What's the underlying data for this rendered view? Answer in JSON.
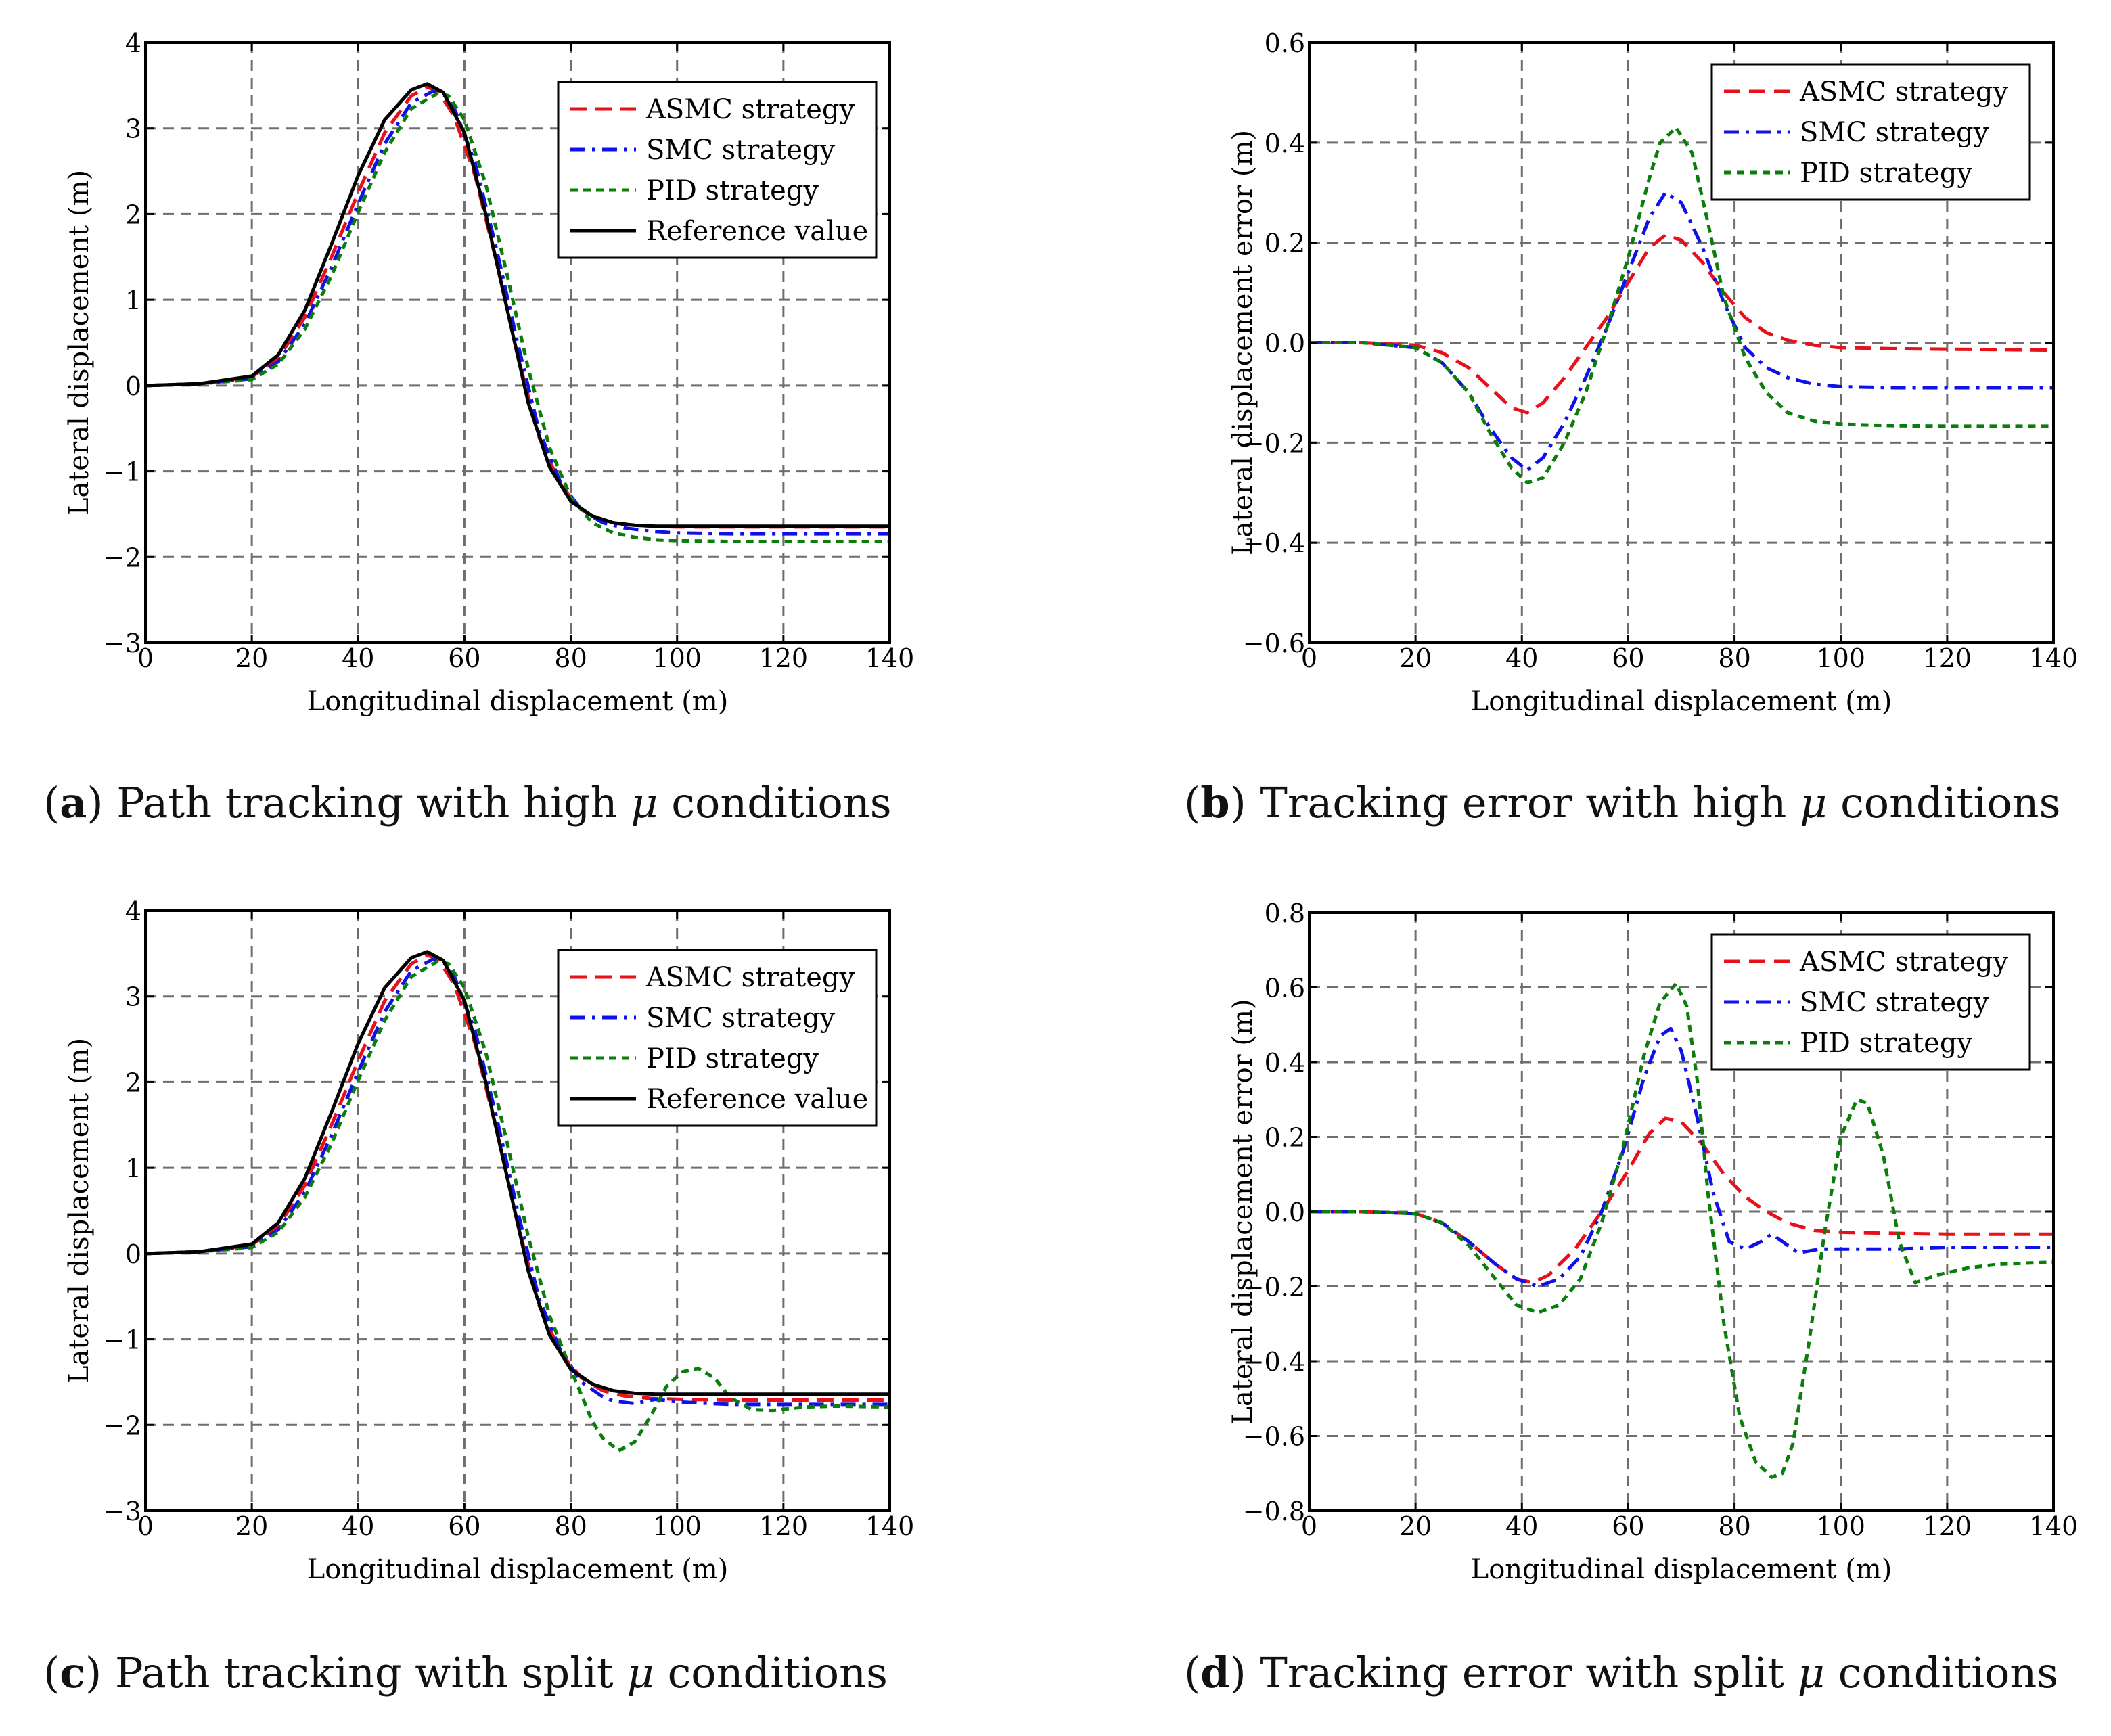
{
  "colors": {
    "asmc": "#e8101a",
    "smc": "#1010e8",
    "pid": "#0b7d0b",
    "reference": "#000000",
    "grid": "#6e6e6e"
  },
  "captions": [
    {
      "letter": "a",
      "text_before": "Path tracking with high",
      "mu": "μ",
      "text_after": "conditions"
    },
    {
      "letter": "b",
      "text_before": "Tracking error with high",
      "mu": "μ",
      "text_after": "conditions"
    },
    {
      "letter": "c",
      "text_before": "Path tracking with split",
      "mu": "μ",
      "text_after": "conditions"
    },
    {
      "letter": "d",
      "text_before": "Tracking error with split",
      "mu": "μ",
      "text_after": "conditions"
    }
  ],
  "chart_data": [
    {
      "id": "a",
      "type": "line",
      "title": "",
      "xlabel": "Longitudinal displacement (m)",
      "ylabel": "Lateral displacement (m)",
      "xlim": [
        0,
        140
      ],
      "ylim": [
        -3,
        4
      ],
      "xticks": [
        0,
        20,
        40,
        60,
        80,
        100,
        120,
        140
      ],
      "yticks": [
        -3,
        -2,
        -1,
        0,
        1,
        2,
        3,
        4
      ],
      "ytick_labels": [
        "−3",
        "−2",
        "−1",
        "0",
        "1",
        "2",
        "3",
        "4"
      ],
      "grid": true,
      "legend_position": "top-right",
      "series": [
        {
          "name": "ASMC strategy",
          "style": "dashed",
          "color_key": "asmc",
          "x": [
            0,
            10,
            20,
            25,
            30,
            35,
            40,
            45,
            50,
            53,
            55,
            58,
            62,
            66,
            70,
            74,
            78,
            82,
            86,
            90,
            95,
            100,
            110,
            120,
            130,
            140
          ],
          "y": [
            0,
            0.02,
            0.1,
            0.32,
            0.8,
            1.5,
            2.25,
            2.95,
            3.38,
            3.48,
            3.44,
            3.15,
            2.45,
            1.45,
            0.35,
            -0.6,
            -1.15,
            -1.45,
            -1.57,
            -1.62,
            -1.64,
            -1.65,
            -1.65,
            -1.65,
            -1.65,
            -1.65
          ]
        },
        {
          "name": "SMC strategy",
          "style": "dashdot",
          "color_key": "smc",
          "x": [
            0,
            10,
            20,
            25,
            30,
            35,
            40,
            45,
            50,
            54,
            56,
            58,
            62,
            66,
            70,
            74,
            78,
            82,
            86,
            90,
            95,
            100,
            110,
            120,
            130,
            140
          ],
          "y": [
            0,
            0.02,
            0.08,
            0.28,
            0.72,
            1.38,
            2.12,
            2.82,
            3.3,
            3.43,
            3.4,
            3.25,
            2.6,
            1.6,
            0.5,
            -0.52,
            -1.12,
            -1.45,
            -1.6,
            -1.66,
            -1.7,
            -1.72,
            -1.73,
            -1.73,
            -1.73,
            -1.73
          ]
        },
        {
          "name": "PID strategy",
          "style": "dotted",
          "color_key": "pid",
          "x": [
            0,
            10,
            20,
            25,
            30,
            35,
            40,
            45,
            50,
            55,
            57,
            60,
            64,
            68,
            72,
            76,
            80,
            84,
            88,
            92,
            96,
            100,
            110,
            120,
            130,
            140
          ],
          "y": [
            0,
            0.02,
            0.07,
            0.25,
            0.66,
            1.28,
            2.02,
            2.72,
            3.23,
            3.41,
            3.38,
            3.1,
            2.35,
            1.3,
            0.2,
            -0.72,
            -1.3,
            -1.6,
            -1.72,
            -1.77,
            -1.8,
            -1.81,
            -1.82,
            -1.82,
            -1.82,
            -1.82
          ]
        },
        {
          "name": "Reference value",
          "style": "solid",
          "color_key": "reference",
          "x": [
            0,
            10,
            20,
            25,
            30,
            35,
            40,
            45,
            50,
            53,
            56,
            60,
            64,
            68,
            72,
            76,
            80,
            84,
            88,
            92,
            96,
            100,
            110,
            120,
            130,
            140
          ],
          "y": [
            0,
            0.02,
            0.11,
            0.36,
            0.88,
            1.65,
            2.45,
            3.1,
            3.45,
            3.52,
            3.42,
            2.95,
            2.0,
            0.9,
            -0.2,
            -0.95,
            -1.35,
            -1.52,
            -1.6,
            -1.63,
            -1.64,
            -1.64,
            -1.64,
            -1.64,
            -1.64,
            -1.64
          ]
        }
      ]
    },
    {
      "id": "b",
      "type": "line",
      "title": "",
      "xlabel": "Longitudinal displacement (m)",
      "ylabel": "Lateral displacement error (m)",
      "xlim": [
        0,
        140
      ],
      "ylim": [
        -0.6,
        0.6
      ],
      "xticks": [
        0,
        20,
        40,
        60,
        80,
        100,
        120,
        140
      ],
      "yticks": [
        -0.6,
        -0.4,
        -0.2,
        0,
        0.2,
        0.4,
        0.6
      ],
      "ytick_labels": [
        "−0.6",
        "−0.4",
        "−0.2",
        "0.0",
        "0.2",
        "0.4",
        "0.6"
      ],
      "grid": true,
      "legend_position": "top-right",
      "series": [
        {
          "name": "ASMC strategy",
          "style": "dashed",
          "color_key": "asmc",
          "x": [
            0,
            10,
            20,
            25,
            30,
            35,
            38,
            41,
            44,
            48,
            52,
            56,
            60,
            64,
            67,
            70,
            74,
            78,
            82,
            86,
            90,
            95,
            100,
            110,
            120,
            130,
            140
          ],
          "y": [
            0,
            0,
            -0.005,
            -0.02,
            -0.05,
            -0.1,
            -0.13,
            -0.14,
            -0.12,
            -0.07,
            -0.01,
            0.05,
            0.12,
            0.19,
            0.215,
            0.205,
            0.16,
            0.1,
            0.05,
            0.02,
            0.005,
            -0.005,
            -0.01,
            -0.012,
            -0.013,
            -0.014,
            -0.015
          ]
        },
        {
          "name": "SMC strategy",
          "style": "dashdot",
          "color_key": "smc",
          "x": [
            0,
            10,
            20,
            25,
            30,
            34,
            38,
            41,
            44,
            48,
            52,
            56,
            60,
            64,
            67,
            70,
            74,
            78,
            82,
            86,
            90,
            95,
            100,
            110,
            120,
            130,
            140
          ],
          "y": [
            0,
            0,
            -0.01,
            -0.04,
            -0.1,
            -0.17,
            -0.23,
            -0.255,
            -0.23,
            -0.16,
            -0.07,
            0.03,
            0.14,
            0.25,
            0.3,
            0.28,
            0.19,
            0.08,
            -0.01,
            -0.05,
            -0.07,
            -0.083,
            -0.088,
            -0.09,
            -0.09,
            -0.09,
            -0.09
          ]
        },
        {
          "name": "PID strategy",
          "style": "dotted",
          "color_key": "pid",
          "x": [
            0,
            10,
            20,
            25,
            30,
            34,
            38,
            41,
            44,
            48,
            52,
            56,
            60,
            64,
            66,
            69,
            72,
            75,
            78,
            82,
            86,
            90,
            95,
            100,
            110,
            120,
            130,
            140
          ],
          "y": [
            0,
            0,
            -0.01,
            -0.04,
            -0.1,
            -0.18,
            -0.25,
            -0.28,
            -0.27,
            -0.2,
            -0.1,
            0.03,
            0.17,
            0.33,
            0.4,
            0.43,
            0.38,
            0.24,
            0.09,
            -0.03,
            -0.1,
            -0.14,
            -0.157,
            -0.163,
            -0.166,
            -0.167,
            -0.167,
            -0.167
          ]
        }
      ]
    },
    {
      "id": "c",
      "type": "line",
      "title": "",
      "xlabel": "Longitudinal displacement (m)",
      "ylabel": "Lateral displacement (m)",
      "xlim": [
        0,
        140
      ],
      "ylim": [
        -3,
        4
      ],
      "xticks": [
        0,
        20,
        40,
        60,
        80,
        100,
        120,
        140
      ],
      "yticks": [
        -3,
        -2,
        -1,
        0,
        1,
        2,
        3,
        4
      ],
      "ytick_labels": [
        "−3",
        "−2",
        "−1",
        "0",
        "1",
        "2",
        "3",
        "4"
      ],
      "grid": true,
      "legend_position": "top-right",
      "series": [
        {
          "name": "ASMC strategy",
          "style": "dashed",
          "color_key": "asmc",
          "x": [
            0,
            10,
            20,
            25,
            30,
            35,
            40,
            45,
            50,
            53,
            55,
            58,
            62,
            66,
            70,
            74,
            78,
            82,
            86,
            90,
            95,
            100,
            110,
            120,
            130,
            140
          ],
          "y": [
            0,
            0.02,
            0.1,
            0.32,
            0.8,
            1.5,
            2.25,
            2.95,
            3.38,
            3.48,
            3.44,
            3.15,
            2.45,
            1.45,
            0.35,
            -0.6,
            -1.15,
            -1.45,
            -1.6,
            -1.66,
            -1.69,
            -1.7,
            -1.71,
            -1.71,
            -1.71,
            -1.71
          ]
        },
        {
          "name": "SMC strategy",
          "style": "dashdot",
          "color_key": "smc",
          "x": [
            0,
            10,
            20,
            25,
            30,
            35,
            40,
            45,
            50,
            54,
            56,
            58,
            62,
            66,
            70,
            74,
            78,
            82,
            86,
            88,
            92,
            96,
            100,
            110,
            120,
            130,
            140
          ],
          "y": [
            0,
            0.02,
            0.08,
            0.28,
            0.72,
            1.38,
            2.12,
            2.82,
            3.3,
            3.43,
            3.4,
            3.25,
            2.6,
            1.6,
            0.5,
            -0.52,
            -1.12,
            -1.5,
            -1.67,
            -1.72,
            -1.75,
            -1.7,
            -1.73,
            -1.76,
            -1.76,
            -1.76,
            -1.76
          ]
        },
        {
          "name": "PID strategy",
          "style": "dotted",
          "color_key": "pid",
          "x": [
            0,
            10,
            20,
            25,
            30,
            35,
            40,
            45,
            50,
            55,
            57,
            60,
            64,
            68,
            72,
            76,
            80,
            84,
            86,
            89,
            92,
            95,
            98,
            101,
            104,
            107,
            110,
            114,
            118,
            124,
            130,
            140
          ],
          "y": [
            0,
            0.02,
            0.07,
            0.25,
            0.66,
            1.28,
            2.02,
            2.72,
            3.23,
            3.41,
            3.38,
            3.1,
            2.35,
            1.3,
            0.2,
            -0.72,
            -1.35,
            -1.95,
            -2.15,
            -2.3,
            -2.2,
            -1.9,
            -1.55,
            -1.38,
            -1.34,
            -1.45,
            -1.68,
            -1.82,
            -1.83,
            -1.79,
            -1.78,
            -1.79
          ]
        },
        {
          "name": "Reference value",
          "style": "solid",
          "color_key": "reference",
          "x": [
            0,
            10,
            20,
            25,
            30,
            35,
            40,
            45,
            50,
            53,
            56,
            60,
            64,
            68,
            72,
            76,
            80,
            84,
            88,
            92,
            96,
            100,
            110,
            120,
            130,
            140
          ],
          "y": [
            0,
            0.02,
            0.11,
            0.36,
            0.88,
            1.65,
            2.45,
            3.1,
            3.45,
            3.52,
            3.42,
            2.95,
            2.0,
            0.9,
            -0.2,
            -0.95,
            -1.35,
            -1.52,
            -1.6,
            -1.63,
            -1.64,
            -1.64,
            -1.64,
            -1.64,
            -1.64,
            -1.64
          ]
        }
      ]
    },
    {
      "id": "d",
      "type": "line",
      "title": "",
      "xlabel": "Longitudinal displacement (m)",
      "ylabel": "Lateral displacement error (m)",
      "xlim": [
        0,
        140
      ],
      "ylim": [
        -0.8,
        0.8
      ],
      "xticks": [
        0,
        20,
        40,
        60,
        80,
        100,
        120,
        140
      ],
      "yticks": [
        -0.8,
        -0.6,
        -0.4,
        -0.2,
        0,
        0.2,
        0.4,
        0.6,
        0.8
      ],
      "ytick_labels": [
        "−0.8",
        "−0.6",
        "−0.4",
        "−0.2",
        "0.0",
        "0.2",
        "0.4",
        "0.6",
        "0.8"
      ],
      "grid": true,
      "legend_position": "top-right",
      "series": [
        {
          "name": "ASMC strategy",
          "style": "dashed",
          "color_key": "asmc",
          "x": [
            0,
            10,
            20,
            25,
            30,
            35,
            39,
            42,
            45,
            50,
            55,
            60,
            64,
            67,
            70,
            74,
            78,
            82,
            86,
            90,
            95,
            100,
            110,
            120,
            130,
            140
          ],
          "y": [
            0,
            0,
            -0.005,
            -0.03,
            -0.08,
            -0.14,
            -0.18,
            -0.19,
            -0.17,
            -0.1,
            0.0,
            0.11,
            0.21,
            0.25,
            0.24,
            0.18,
            0.1,
            0.04,
            0.0,
            -0.03,
            -0.05,
            -0.055,
            -0.058,
            -0.06,
            -0.06,
            -0.06
          ]
        },
        {
          "name": "SMC strategy",
          "style": "dashdot",
          "color_key": "smc",
          "x": [
            0,
            10,
            20,
            25,
            30,
            35,
            39,
            43,
            47,
            51,
            55,
            59,
            63,
            66,
            68,
            70,
            73,
            76,
            79,
            82,
            85,
            87,
            89,
            92,
            96,
            100,
            110,
            120,
            130,
            140
          ],
          "y": [
            0,
            0,
            -0.005,
            -0.03,
            -0.08,
            -0.14,
            -0.18,
            -0.2,
            -0.18,
            -0.12,
            0.0,
            0.16,
            0.36,
            0.47,
            0.49,
            0.43,
            0.25,
            0.05,
            -0.08,
            -0.1,
            -0.08,
            -0.06,
            -0.08,
            -0.11,
            -0.1,
            -0.1,
            -0.1,
            -0.095,
            -0.095,
            -0.095
          ]
        },
        {
          "name": "PID strategy",
          "style": "dotted",
          "color_key": "pid",
          "x": [
            0,
            10,
            20,
            25,
            30,
            35,
            39,
            43,
            47,
            51,
            55,
            59,
            63,
            66,
            69,
            71,
            73,
            75,
            78,
            81,
            84,
            87,
            89,
            91,
            94,
            97,
            100,
            103,
            105,
            108,
            111,
            114,
            118,
            124,
            130,
            140
          ],
          "y": [
            0,
            0,
            -0.005,
            -0.03,
            -0.09,
            -0.18,
            -0.25,
            -0.27,
            -0.25,
            -0.18,
            -0.03,
            0.17,
            0.42,
            0.56,
            0.61,
            0.55,
            0.35,
            0.05,
            -0.3,
            -0.55,
            -0.67,
            -0.71,
            -0.7,
            -0.62,
            -0.35,
            -0.05,
            0.2,
            0.3,
            0.29,
            0.15,
            -0.08,
            -0.19,
            -0.17,
            -0.15,
            -0.14,
            -0.135
          ]
        }
      ]
    }
  ]
}
